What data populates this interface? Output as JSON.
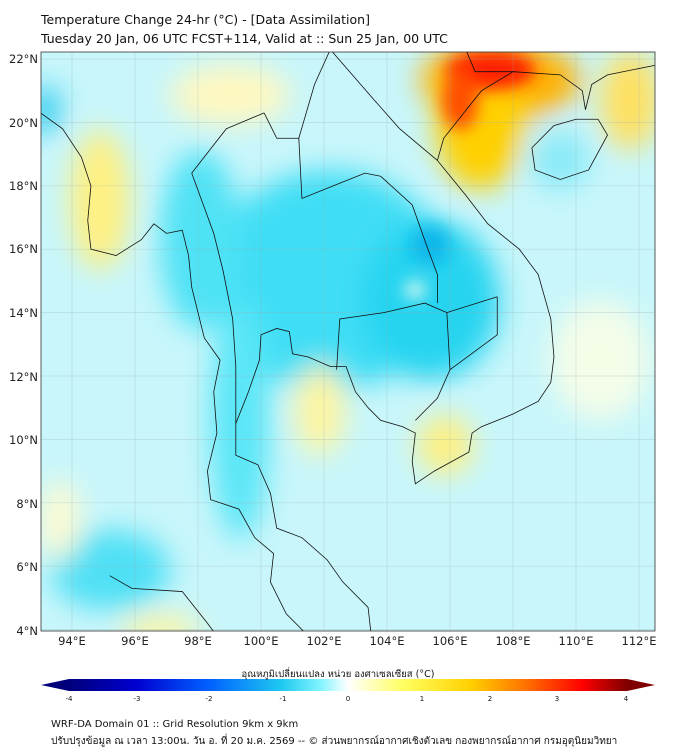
{
  "header": {
    "title": "Temperature Change 24-hr (°C) - [Data Assimilation]",
    "subtitle": "Tuesday 20 Jan, 06 UTC FCST+114, Valid at :: Sun 25 Jan, 00 UTC"
  },
  "map": {
    "lat_labels": [
      "22°N",
      "20°N",
      "18°N",
      "16°N",
      "14°N",
      "12°N",
      "10°N",
      "8°N",
      "6°N",
      "4°N"
    ],
    "lon_labels": [
      "94°E",
      "96°E",
      "98°E",
      "100°E",
      "102°E",
      "104°E",
      "106°E",
      "108°E",
      "110°E",
      "112°E"
    ]
  },
  "colorbar": {
    "title": "อุณหภูมิเปลี่ยนแปลง หน่วย องศาเซลเซียส (°C)",
    "ticks": [
      "-4",
      "-3",
      "-2",
      "-1",
      "0",
      "1",
      "2",
      "3",
      "4"
    ],
    "range": [
      -4,
      4
    ],
    "colors": [
      "#00007a",
      "#0000d0",
      "#0060ff",
      "#1ec8f0",
      "#50f0ff",
      "#ffffff",
      "#ffff60",
      "#ffd000",
      "#ff7000",
      "#ff0000",
      "#800000"
    ]
  },
  "footer": {
    "line1": "WRF-DA Domain 01 :: Grid Resolution 9km x 9km",
    "line2": "ปรับปรุงข้อมูล ณ เวลา 13:00น. วัน อ. ที่ 20 ม.ค. 2569 -- © ส่วนพยากรณ์อากาศเชิงตัวเลข กองพยากรณ์อากาศ กรมอุตุนิยมวิทยา"
  }
}
